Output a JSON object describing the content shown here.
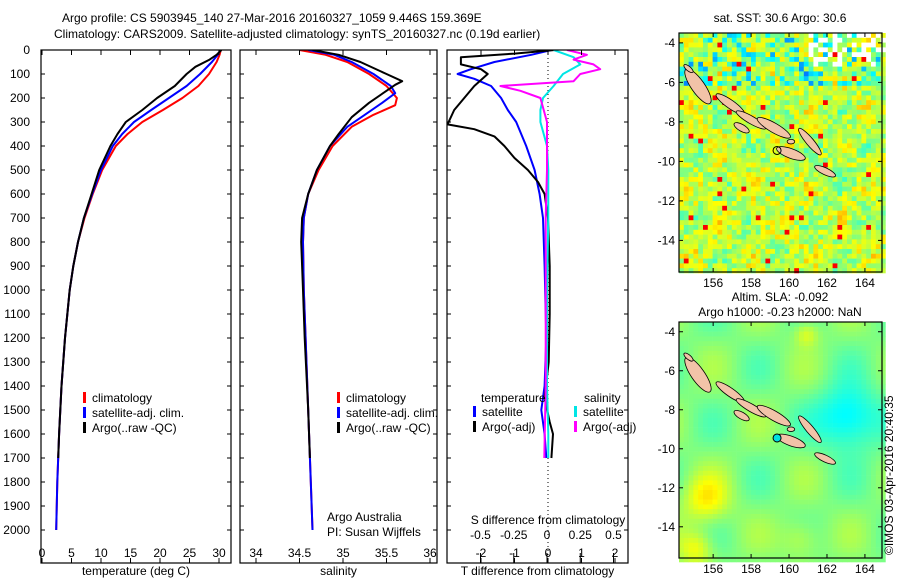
{
  "title": {
    "line1": "Argo profile: CS 5903945_140 27-Mar-2016 20160327_1059 9.446S 159.369E",
    "line2": "Climatology: CARS2009. Satellite-adjusted climatology: synTS_20160327.nc (0.19d earlier)"
  },
  "credits": {
    "org": "Argo Australia",
    "pi": "PI: Susan Wijffels",
    "side": "©IMOS 03-Apr-2016 20:40:35"
  },
  "colors": {
    "climatology": "#ff0000",
    "satellite": "#0000ff",
    "argo": "#000000",
    "sal_satellite": "#00e5e5",
    "sal_argo": "#ff00ff"
  },
  "chart_data": [
    {
      "type": "line",
      "xlabel": "temperature (deg C)",
      "ylabel": "",
      "xlim": [
        -2,
        31.5
      ],
      "ylim": [
        2000,
        0
      ],
      "xticks": [
        "0",
        "5",
        "10",
        "15",
        "20",
        "25",
        "30"
      ],
      "yticks": [
        "0",
        "100",
        "200",
        "300",
        "400",
        "500",
        "600",
        "700",
        "800",
        "900",
        "1000",
        "1100",
        "1200",
        "1300",
        "1400",
        "1500",
        "1600",
        "1700",
        "1800",
        "1900",
        "2000"
      ],
      "legend": [
        "climatology",
        "satellite-adj. clim.",
        "Argo(..raw -QC)"
      ],
      "series": [
        {
          "name": "climatology",
          "color": "#ff0000",
          "points": [
            [
              0,
              30.3
            ],
            [
              20,
              30.1
            ],
            [
              50,
              29.6
            ],
            [
              100,
              28.3
            ],
            [
              150,
              26.5
            ],
            [
              200,
              23.8
            ],
            [
              250,
              20.5
            ],
            [
              300,
              17
            ],
            [
              350,
              14.5
            ],
            [
              400,
              12.5
            ],
            [
              500,
              10.2
            ],
            [
              600,
              8.6
            ],
            [
              700,
              7.2
            ],
            [
              800,
              6.1
            ],
            [
              900,
              5.3
            ],
            [
              1000,
              4.7
            ],
            [
              1200,
              3.9
            ],
            [
              1400,
              3.3
            ],
            [
              1600,
              2.9
            ],
            [
              1800,
              2.6
            ],
            [
              2000,
              2.4
            ]
          ]
        },
        {
          "name": "satellite-adj. clim.",
          "color": "#0000ff",
          "points": [
            [
              0,
              30.2
            ],
            [
              20,
              29.8
            ],
            [
              50,
              28.8
            ],
            [
              100,
              26.8
            ],
            [
              150,
              24.5
            ],
            [
              200,
              21.5
            ],
            [
              250,
              18.5
            ],
            [
              300,
              15.6
            ],
            [
              350,
              13.6
            ],
            [
              400,
              12
            ],
            [
              500,
              10
            ],
            [
              600,
              8.5
            ],
            [
              700,
              7.1
            ],
            [
              800,
              6.1
            ],
            [
              900,
              5.3
            ],
            [
              1000,
              4.7
            ],
            [
              1200,
              3.9
            ],
            [
              1400,
              3.3
            ],
            [
              1600,
              2.9
            ],
            [
              1800,
              2.6
            ],
            [
              2000,
              2.4
            ]
          ]
        },
        {
          "name": "Argo(..raw -QC)",
          "color": "#000000",
          "points": [
            [
              0,
              30.4
            ],
            [
              20,
              29.6
            ],
            [
              40,
              28.4
            ],
            [
              70,
              26
            ],
            [
              100,
              24.5
            ],
            [
              150,
              22.5
            ],
            [
              200,
              19.5
            ],
            [
              250,
              17
            ],
            [
              300,
              14.2
            ],
            [
              350,
              12.8
            ],
            [
              400,
              11.6
            ],
            [
              500,
              9.7
            ],
            [
              600,
              8.4
            ],
            [
              700,
              7.1
            ],
            [
              800,
              6.1
            ],
            [
              900,
              5.3
            ],
            [
              1000,
              4.7
            ],
            [
              1200,
              3.9
            ],
            [
              1400,
              3.3
            ],
            [
              1600,
              2.9
            ],
            [
              1700,
              2.75
            ]
          ]
        }
      ]
    },
    {
      "type": "line",
      "xlabel": "salinity",
      "xlim": [
        33.8,
        36.1
      ],
      "ylim": [
        2000,
        0
      ],
      "xticks": [
        "34",
        "34.5",
        "35",
        "35.5",
        "36"
      ],
      "legend": [
        "climatology",
        "satellite-adj. clim.",
        "Argo(..raw -QC)"
      ],
      "series": [
        {
          "name": "climatology",
          "color": "#ff0000",
          "points": [
            [
              0,
              34.5
            ],
            [
              20,
              34.8
            ],
            [
              50,
              35.05
            ],
            [
              100,
              35.3
            ],
            [
              150,
              35.5
            ],
            [
              200,
              35.62
            ],
            [
              230,
              35.6
            ],
            [
              270,
              35.35
            ],
            [
              320,
              35.1
            ],
            [
              400,
              34.88
            ],
            [
              500,
              34.72
            ],
            [
              600,
              34.6
            ],
            [
              700,
              34.55
            ],
            [
              800,
              34.54
            ],
            [
              1000,
              34.55
            ],
            [
              1200,
              34.57
            ],
            [
              1500,
              34.6
            ],
            [
              1800,
              34.63
            ],
            [
              2000,
              34.65
            ]
          ]
        },
        {
          "name": "satellite-adj. clim.",
          "color": "#0000ff",
          "points": [
            [
              0,
              34.6
            ],
            [
              20,
              34.9
            ],
            [
              50,
              35.1
            ],
            [
              100,
              35.35
            ],
            [
              150,
              35.55
            ],
            [
              180,
              35.6
            ],
            [
              220,
              35.45
            ],
            [
              270,
              35.25
            ],
            [
              320,
              35.05
            ],
            [
              400,
              34.85
            ],
            [
              500,
              34.7
            ],
            [
              600,
              34.6
            ],
            [
              700,
              34.55
            ],
            [
              800,
              34.54
            ],
            [
              1000,
              34.55
            ],
            [
              1200,
              34.57
            ],
            [
              1500,
              34.6
            ],
            [
              1800,
              34.63
            ],
            [
              2000,
              34.65
            ]
          ]
        },
        {
          "name": "Argo(..raw -QC)",
          "color": "#000000",
          "points": [
            [
              0,
              34.65
            ],
            [
              20,
              34.95
            ],
            [
              50,
              35.2
            ],
            [
              100,
              35.5
            ],
            [
              130,
              35.68
            ],
            [
              145,
              35.6
            ],
            [
              170,
              35.5
            ],
            [
              220,
              35.3
            ],
            [
              280,
              35.1
            ],
            [
              350,
              34.95
            ],
            [
              400,
              34.85
            ],
            [
              500,
              34.7
            ],
            [
              600,
              34.6
            ],
            [
              700,
              34.53
            ],
            [
              800,
              34.52
            ],
            [
              1000,
              34.54
            ],
            [
              1200,
              34.56
            ],
            [
              1500,
              34.6
            ],
            [
              1700,
              34.62
            ]
          ]
        }
      ]
    },
    {
      "type": "line",
      "xlabel": "T difference from climatology",
      "x2label": "S difference from climatology",
      "xlim": [
        -3,
        2.4
      ],
      "x2lim": [
        -0.75,
        0.6
      ],
      "ylim": [
        2000,
        0
      ],
      "xticks": [
        "-2",
        "-1",
        "0",
        "1",
        "2"
      ],
      "x2ticks": [
        "-0.5",
        "-0.25",
        "0",
        "0.25",
        "0.5"
      ],
      "legend_headers": [
        "temperature",
        "salinity"
      ],
      "legend": [
        "satellite",
        "Argo(-adj)",
        "satellite",
        "Argo(-adj)"
      ],
      "series": [
        {
          "name": "T satellite",
          "axis": "T",
          "color": "#0000ff",
          "points": [
            [
              0,
              0.1
            ],
            [
              20,
              -0.5
            ],
            [
              50,
              -1.6
            ],
            [
              80,
              -2.3
            ],
            [
              100,
              -2.7
            ],
            [
              120,
              -2.2
            ],
            [
              150,
              -1.7
            ],
            [
              200,
              -1.4
            ],
            [
              250,
              -1.2
            ],
            [
              300,
              -0.95
            ],
            [
              400,
              -0.65
            ],
            [
              500,
              -0.4
            ],
            [
              600,
              -0.25
            ],
            [
              700,
              -0.15
            ],
            [
              900,
              -0.1
            ],
            [
              1200,
              -0.05
            ],
            [
              1400,
              -0.1
            ],
            [
              1500,
              -0.2
            ],
            [
              1600,
              -0.1
            ],
            [
              1700,
              -0.05
            ]
          ]
        },
        {
          "name": "T Argo(-adj)",
          "axis": "T",
          "color": "#000000",
          "points": [
            [
              0,
              0.2
            ],
            [
              15,
              -1
            ],
            [
              30,
              -2.6
            ],
            [
              60,
              -2.6
            ],
            [
              80,
              -2
            ],
            [
              100,
              -1.8
            ],
            [
              150,
              -2.2
            ],
            [
              250,
              -2.8
            ],
            [
              310,
              -3
            ],
            [
              330,
              -2.2
            ],
            [
              360,
              -1.6
            ],
            [
              400,
              -1.3
            ],
            [
              450,
              -1
            ],
            [
              500,
              -0.6
            ],
            [
              550,
              -0.3
            ],
            [
              600,
              -0.1
            ],
            [
              700,
              0
            ],
            [
              900,
              0.05
            ],
            [
              1100,
              0.05
            ],
            [
              1300,
              0.02
            ],
            [
              1450,
              -0.1
            ],
            [
              1550,
              0.05
            ],
            [
              1600,
              0.15
            ],
            [
              1700,
              0.1
            ]
          ]
        },
        {
          "name": "S satellite",
          "axis": "S",
          "color": "#00e5e5",
          "points": [
            [
              0,
              0.05
            ],
            [
              30,
              0.2
            ],
            [
              60,
              0.25
            ],
            [
              100,
              0.12
            ],
            [
              150,
              0.05
            ],
            [
              200,
              -0.03
            ],
            [
              250,
              -0.05
            ],
            [
              300,
              -0.05
            ],
            [
              400,
              0
            ],
            [
              500,
              0.01
            ],
            [
              700,
              0.01
            ],
            [
              1000,
              0
            ],
            [
              1400,
              0
            ],
            [
              1600,
              0.01
            ],
            [
              1700,
              0.01
            ]
          ]
        },
        {
          "name": "S Argo(-adj)",
          "axis": "S",
          "color": "#ff00ff",
          "points": [
            [
              0,
              0.15
            ],
            [
              20,
              0.3
            ],
            [
              40,
              0.2
            ],
            [
              60,
              0.35
            ],
            [
              80,
              0.4
            ],
            [
              100,
              0.25
            ],
            [
              130,
              0.2
            ],
            [
              150,
              -0.35
            ],
            [
              170,
              -0.2
            ],
            [
              200,
              -0.05
            ],
            [
              300,
              0
            ],
            [
              500,
              0
            ],
            [
              700,
              -0.01
            ],
            [
              1000,
              -0.01
            ],
            [
              1400,
              -0.01
            ],
            [
              1700,
              -0.02
            ]
          ]
        }
      ]
    },
    {
      "type": "heatmap",
      "title": "sat. SST: 30.6  Argo: 30.6",
      "xticks": [
        "156",
        "158",
        "160",
        "162",
        "164"
      ],
      "yticks": [
        "-4",
        "-6",
        "-8",
        "-10",
        "-12",
        "-14"
      ],
      "xlim": [
        154.2,
        164.9
      ],
      "ylim": [
        -15.6,
        -3.5
      ]
    },
    {
      "type": "heatmap",
      "title": "Altim. SLA: -0.092",
      "subtitle": "Argo h1000: -0.23 h2000: NaN",
      "xticks": [
        "156",
        "158",
        "160",
        "162",
        "164"
      ],
      "yticks": [
        "-4",
        "-6",
        "-8",
        "-10",
        "-12",
        "-14"
      ],
      "xlim": [
        154.2,
        164.9
      ],
      "ylim": [
        -15.6,
        -3.5
      ]
    }
  ],
  "argo_position": {
    "lon": 159.369,
    "lat": -9.446
  }
}
